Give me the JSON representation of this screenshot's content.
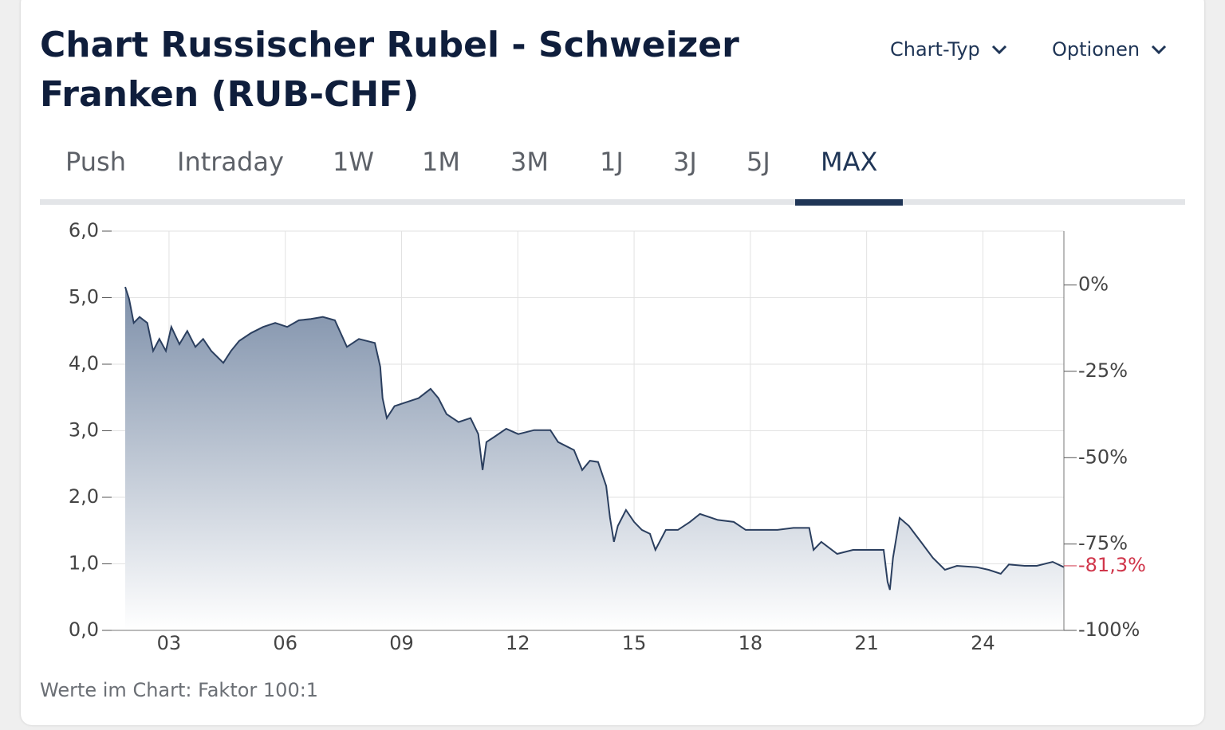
{
  "header": {
    "title": "Chart Russischer Rubel - Schweizer Franken (RUB-CHF)",
    "menus": [
      "Chart-Typ",
      "Optionen"
    ]
  },
  "tabs": [
    "Push",
    "Intraday",
    "1W",
    "1M",
    "3M",
    "1J",
    "3J",
    "5J",
    "MAX"
  ],
  "active_tab": 8,
  "chart_data": {
    "type": "area",
    "x": [
      2001.87,
      2001.97,
      2002.09,
      2002.24,
      2002.44,
      2002.59,
      2002.75,
      2002.92,
      2003.06,
      2003.27,
      2003.47,
      2003.68,
      2003.88,
      2004.09,
      2004.4,
      2004.6,
      2004.81,
      2005.12,
      2005.43,
      2005.74,
      2006.05,
      2006.35,
      2006.66,
      2006.97,
      2007.28,
      2007.59,
      2007.9,
      2008.31,
      2008.45,
      2008.51,
      2008.62,
      2008.82,
      2009.13,
      2009.44,
      2009.75,
      2009.95,
      2010.16,
      2010.47,
      2010.78,
      2010.98,
      2011.09,
      2011.19,
      2011.4,
      2011.7,
      2012.01,
      2012.42,
      2012.84,
      2013.04,
      2013.45,
      2013.66,
      2013.86,
      2014.07,
      2014.28,
      2014.38,
      2014.48,
      2014.58,
      2014.79,
      2015.0,
      2015.2,
      2015.41,
      2015.55,
      2015.82,
      2016.13,
      2016.44,
      2016.7,
      2017.16,
      2017.57,
      2017.88,
      2018.29,
      2018.7,
      2019.11,
      2019.52,
      2019.63,
      2019.83,
      2020.24,
      2020.65,
      2021.07,
      2021.44,
      2021.54,
      2021.6,
      2021.68,
      2021.85,
      2022.09,
      2022.4,
      2022.71,
      2023.02,
      2023.33,
      2023.84,
      2024.15,
      2024.46,
      2024.67,
      2025.08,
      2025.39,
      2025.8,
      2026.09
    ],
    "values": [
      5.16,
      4.98,
      4.62,
      4.71,
      4.62,
      4.2,
      4.38,
      4.2,
      4.56,
      4.3,
      4.5,
      4.26,
      4.38,
      4.2,
      4.02,
      4.2,
      4.35,
      4.47,
      4.56,
      4.62,
      4.56,
      4.66,
      4.68,
      4.71,
      4.66,
      4.26,
      4.38,
      4.32,
      3.96,
      3.49,
      3.19,
      3.37,
      3.43,
      3.49,
      3.63,
      3.49,
      3.25,
      3.13,
      3.19,
      2.95,
      2.41,
      2.83,
      2.91,
      3.03,
      2.95,
      3.01,
      3.01,
      2.83,
      2.71,
      2.41,
      2.55,
      2.53,
      2.17,
      1.69,
      1.33,
      1.57,
      1.81,
      1.63,
      1.51,
      1.45,
      1.21,
      1.51,
      1.51,
      1.63,
      1.75,
      1.66,
      1.63,
      1.51,
      1.51,
      1.51,
      1.54,
      1.54,
      1.21,
      1.33,
      1.15,
      1.21,
      1.21,
      1.21,
      0.73,
      0.61,
      1.09,
      1.69,
      1.57,
      1.33,
      1.09,
      0.91,
      0.97,
      0.95,
      0.91,
      0.85,
      0.99,
      0.97,
      0.97,
      1.03,
      0.95
    ],
    "color": "#2b3f5f",
    "xlim": [
      2001.52,
      2026.09
    ],
    "xticks": [
      {
        "value": 2003,
        "label": "03"
      },
      {
        "value": 2006,
        "label": "06"
      },
      {
        "value": 2009,
        "label": "09"
      },
      {
        "value": 2012,
        "label": "12"
      },
      {
        "value": 2015,
        "label": "15"
      },
      {
        "value": 2018,
        "label": "18"
      },
      {
        "value": 2021,
        "label": "21"
      },
      {
        "value": 2024,
        "label": "24"
      }
    ],
    "ylim": [
      0,
      6
    ],
    "yticks": [
      {
        "value": 0,
        "label": "0,0"
      },
      {
        "value": 1,
        "label": "1,0"
      },
      {
        "value": 2,
        "label": "2,0"
      },
      {
        "value": 3,
        "label": "3,0"
      },
      {
        "value": 4,
        "label": "4,0"
      },
      {
        "value": 5,
        "label": "5,0"
      },
      {
        "value": 6,
        "label": "6,0"
      }
    ],
    "y2lim": [
      -100,
      15.6
    ],
    "y2ticks": [
      {
        "value": 0,
        "label": "0%"
      },
      {
        "value": -25,
        "label": "-25%"
      },
      {
        "value": -50,
        "label": "-50%"
      },
      {
        "value": -75,
        "label": "-75%"
      },
      {
        "value": -100,
        "label": "-100%"
      }
    ],
    "last_change": {
      "value": -81.3,
      "label": "-81,3%",
      "color": "#d0354a"
    },
    "grid": true,
    "note": "Werte im Chart: Faktor 100:1"
  }
}
